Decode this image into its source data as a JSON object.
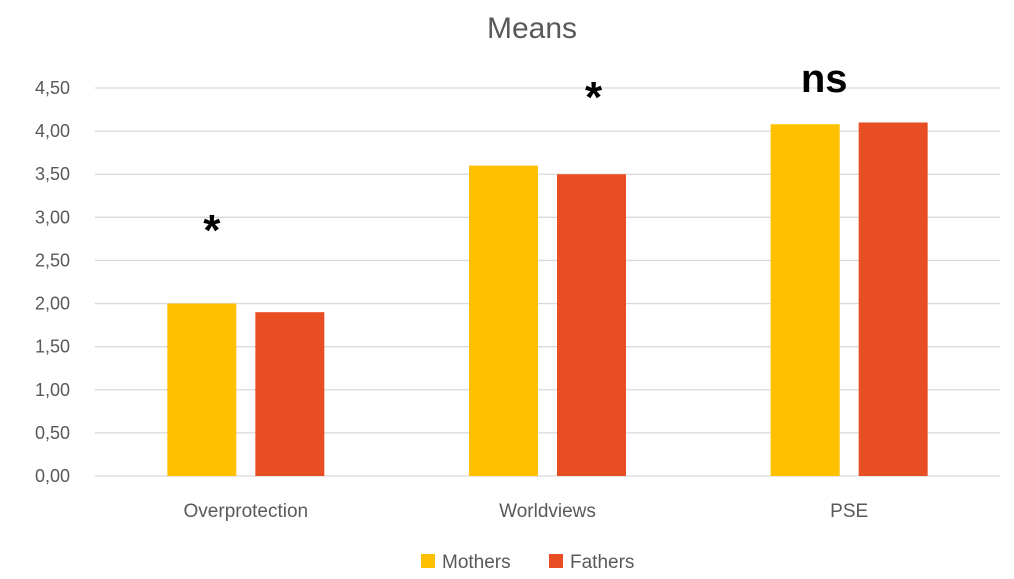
{
  "chart_data": {
    "type": "bar",
    "title": "Means",
    "categories": [
      "Overprotection",
      "Worldviews",
      "PSE"
    ],
    "series": [
      {
        "name": "Mothers",
        "color": "#FFC000",
        "values": [
          2.0,
          3.6,
          4.08
        ]
      },
      {
        "name": "Fathers",
        "color": "#E84E24",
        "values": [
          1.9,
          3.5,
          4.1
        ]
      }
    ],
    "annotations": [
      "*",
      "*",
      "ns"
    ],
    "ylim": [
      0,
      4.5
    ],
    "yticks": [
      "0,00",
      "0,50",
      "1,00",
      "1,50",
      "2,00",
      "2,50",
      "3,00",
      "3,50",
      "4,00",
      "4,50"
    ],
    "ytick_values": [
      0,
      0.5,
      1,
      1.5,
      2,
      2.5,
      3,
      3.5,
      4,
      4.5
    ],
    "grid": true,
    "legend": "bottom",
    "xlabel": "",
    "ylabel": ""
  }
}
